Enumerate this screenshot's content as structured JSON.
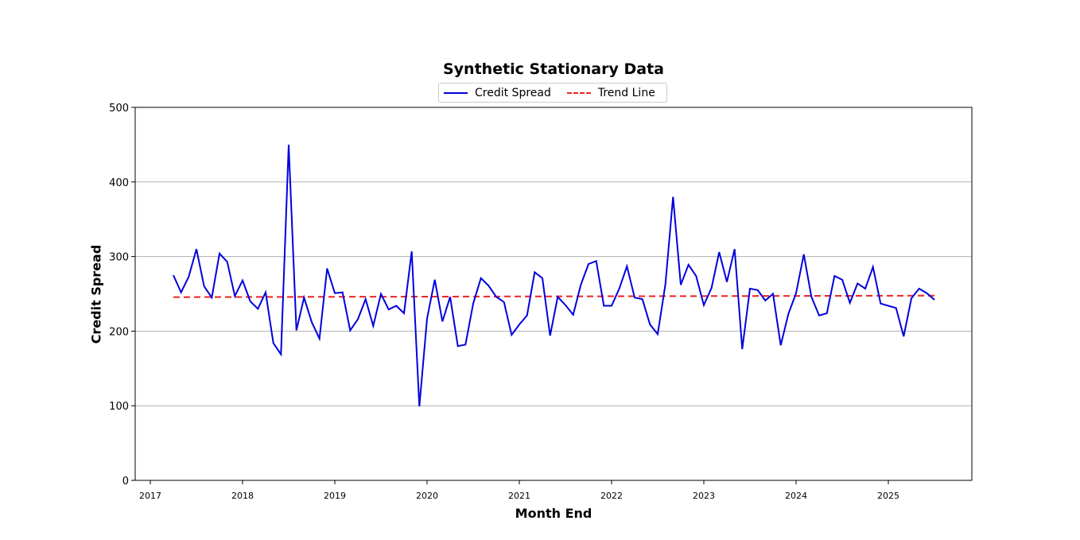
{
  "chart_data": {
    "type": "line",
    "title": "Synthetic Stationary Data",
    "xlabel": "Month End",
    "ylabel": "Credit Spread",
    "ylim": [
      0,
      500
    ],
    "yticks": [
      0,
      100,
      200,
      300,
      400,
      500
    ],
    "xticks": [
      "2017",
      "2018",
      "2019",
      "2020",
      "2021",
      "2022",
      "2023",
      "2024",
      "2025"
    ],
    "grid": "y",
    "legend_position": "upper center (above plot)",
    "x_start": "2017-03",
    "x_end": "2025-06",
    "frequency": "monthly (month end)",
    "series": [
      {
        "name": "Credit Spread",
        "color": "#0000dd",
        "style": "solid",
        "values": [
          275,
          252,
          273,
          310,
          260,
          245,
          304,
          293,
          247,
          268,
          240,
          230,
          252,
          184,
          169,
          450,
          201,
          245,
          212,
          190,
          284,
          251,
          252,
          201,
          216,
          243,
          207,
          250,
          229,
          234,
          224,
          307,
          99,
          217,
          269,
          213,
          246,
          180,
          182,
          237,
          271,
          261,
          246,
          239,
          195,
          209,
          221,
          279,
          271,
          194,
          246,
          235,
          222,
          262,
          290,
          294,
          234,
          234,
          257,
          287,
          245,
          243,
          209,
          196,
          263,
          380,
          262,
          289,
          274,
          235,
          258,
          306,
          266,
          310,
          176,
          257,
          255,
          241,
          250,
          181,
          223,
          251,
          303,
          246,
          221,
          224,
          274,
          269,
          238,
          264,
          257,
          286,
          237,
          234,
          231,
          193,
          244,
          257,
          251,
          242
        ]
      },
      {
        "name": "Trend Line",
        "color": "#ee2222",
        "style": "dashed",
        "start_value": 245.6,
        "end_value": 247.6
      }
    ]
  },
  "legend": {
    "items": [
      {
        "label": "Credit Spread"
      },
      {
        "label": "Trend Line"
      }
    ]
  }
}
